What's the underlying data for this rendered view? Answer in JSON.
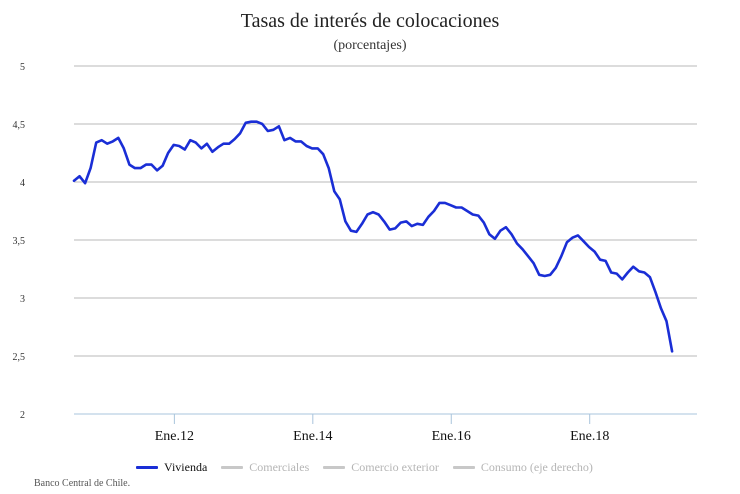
{
  "chart_data": {
    "type": "line",
    "title": "Tasas de interés de colocaciones",
    "subtitle": "(porcentajes)",
    "source": "Banco Central de Chile.",
    "xlabel": "",
    "ylabel": "",
    "ylim": [
      2,
      5
    ],
    "xlim": [
      2010.55,
      2019.55
    ],
    "yticks": [
      "2",
      "2,5",
      "3",
      "3,5",
      "4",
      "4,5",
      "5"
    ],
    "xticks": [
      {
        "label": "Ene.12",
        "x": 2012.0
      },
      {
        "label": "Ene.14",
        "x": 2014.0
      },
      {
        "label": "Ene.16",
        "x": 2016.0
      },
      {
        "label": "Ene.18",
        "x": 2018.0
      }
    ],
    "grid": true,
    "legend_position": "bottom",
    "series": [
      {
        "name": "Vivienda",
        "color": "#1a2ed6",
        "active": true,
        "points": [
          [
            2010.55,
            4.01
          ],
          [
            2010.63,
            4.05
          ],
          [
            2010.71,
            3.99
          ],
          [
            2010.79,
            4.12
          ],
          [
            2010.87,
            4.34
          ],
          [
            2010.95,
            4.36
          ],
          [
            2011.03,
            4.33
          ],
          [
            2011.11,
            4.35
          ],
          [
            2011.19,
            4.38
          ],
          [
            2011.27,
            4.29
          ],
          [
            2011.35,
            4.15
          ],
          [
            2011.43,
            4.12
          ],
          [
            2011.51,
            4.12
          ],
          [
            2011.59,
            4.15
          ],
          [
            2011.67,
            4.15
          ],
          [
            2011.75,
            4.1
          ],
          [
            2011.83,
            4.14
          ],
          [
            2011.91,
            4.25
          ],
          [
            2011.99,
            4.32
          ],
          [
            2012.07,
            4.31
          ],
          [
            2012.15,
            4.28
          ],
          [
            2012.23,
            4.36
          ],
          [
            2012.31,
            4.34
          ],
          [
            2012.39,
            4.29
          ],
          [
            2012.47,
            4.33
          ],
          [
            2012.55,
            4.26
          ],
          [
            2012.63,
            4.3
          ],
          [
            2012.71,
            4.33
          ],
          [
            2012.79,
            4.33
          ],
          [
            2012.87,
            4.37
          ],
          [
            2012.95,
            4.42
          ],
          [
            2013.03,
            4.51
          ],
          [
            2013.11,
            4.52
          ],
          [
            2013.19,
            4.52
          ],
          [
            2013.27,
            4.5
          ],
          [
            2013.35,
            4.44
          ],
          [
            2013.43,
            4.45
          ],
          [
            2013.51,
            4.48
          ],
          [
            2013.59,
            4.36
          ],
          [
            2013.67,
            4.38
          ],
          [
            2013.75,
            4.35
          ],
          [
            2013.83,
            4.35
          ],
          [
            2013.91,
            4.31
          ],
          [
            2013.99,
            4.29
          ],
          [
            2014.07,
            4.29
          ],
          [
            2014.15,
            4.24
          ],
          [
            2014.23,
            4.12
          ],
          [
            2014.31,
            3.92
          ],
          [
            2014.39,
            3.85
          ],
          [
            2014.47,
            3.66
          ],
          [
            2014.55,
            3.58
          ],
          [
            2014.63,
            3.57
          ],
          [
            2014.71,
            3.64
          ],
          [
            2014.79,
            3.72
          ],
          [
            2014.87,
            3.74
          ],
          [
            2014.95,
            3.72
          ],
          [
            2015.03,
            3.66
          ],
          [
            2015.11,
            3.59
          ],
          [
            2015.19,
            3.6
          ],
          [
            2015.27,
            3.65
          ],
          [
            2015.35,
            3.66
          ],
          [
            2015.43,
            3.62
          ],
          [
            2015.51,
            3.64
          ],
          [
            2015.59,
            3.63
          ],
          [
            2015.67,
            3.7
          ],
          [
            2015.75,
            3.75
          ],
          [
            2015.83,
            3.82
          ],
          [
            2015.91,
            3.82
          ],
          [
            2015.99,
            3.8
          ],
          [
            2016.07,
            3.78
          ],
          [
            2016.15,
            3.78
          ],
          [
            2016.23,
            3.75
          ],
          [
            2016.31,
            3.72
          ],
          [
            2016.39,
            3.71
          ],
          [
            2016.47,
            3.65
          ],
          [
            2016.55,
            3.55
          ],
          [
            2016.63,
            3.51
          ],
          [
            2016.71,
            3.58
          ],
          [
            2016.79,
            3.61
          ],
          [
            2016.87,
            3.55
          ],
          [
            2016.95,
            3.47
          ],
          [
            2017.03,
            3.42
          ],
          [
            2017.11,
            3.36
          ],
          [
            2017.19,
            3.3
          ],
          [
            2017.27,
            3.2
          ],
          [
            2017.35,
            3.19
          ],
          [
            2017.43,
            3.2
          ],
          [
            2017.51,
            3.26
          ],
          [
            2017.59,
            3.36
          ],
          [
            2017.67,
            3.48
          ],
          [
            2017.75,
            3.52
          ],
          [
            2017.83,
            3.54
          ],
          [
            2017.91,
            3.49
          ],
          [
            2017.99,
            3.44
          ],
          [
            2018.07,
            3.4
          ],
          [
            2018.15,
            3.33
          ],
          [
            2018.23,
            3.32
          ],
          [
            2018.31,
            3.22
          ],
          [
            2018.39,
            3.21
          ],
          [
            2018.47,
            3.16
          ],
          [
            2018.55,
            3.22
          ],
          [
            2018.63,
            3.27
          ],
          [
            2018.71,
            3.23
          ],
          [
            2018.79,
            3.22
          ],
          [
            2018.87,
            3.18
          ],
          [
            2018.95,
            3.05
          ],
          [
            2019.03,
            2.91
          ],
          [
            2019.11,
            2.8
          ],
          [
            2019.19,
            2.54
          ]
        ]
      },
      {
        "name": "Comerciales",
        "color": "#c8c8c8",
        "active": false,
        "points": []
      },
      {
        "name": "Comercio exterior",
        "color": "#c8c8c8",
        "active": false,
        "points": []
      },
      {
        "name": "Consumo (eje derecho)",
        "color": "#c8c8c8",
        "active": false,
        "points": []
      }
    ]
  }
}
